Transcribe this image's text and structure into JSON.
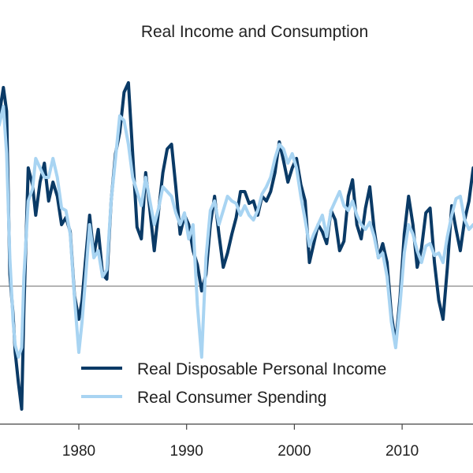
{
  "chart_data": {
    "type": "line",
    "title": "Real Income and Consumption",
    "xlabel": "",
    "ylabel": "",
    "x_ticks": [
      "1980",
      "1990",
      "2000",
      "2010"
    ],
    "x_range": [
      1972.6,
      2016.6
    ],
    "y_range": [
      -6.5,
      9.5
    ],
    "zero_line": 0,
    "legend_position": "lower-center",
    "colors": {
      "income": "#0a3a66",
      "spending": "#a8d4f2",
      "zero_line": "#888888"
    },
    "series": [
      {
        "name": "Real Disposable Personal Income",
        "x": [
          1972.6,
          1973.0,
          1973.3,
          1973.6,
          1973.9,
          1974.1,
          1974.4,
          1974.7,
          1974.9,
          1975.3,
          1975.7,
          1976.0,
          1976.4,
          1976.8,
          1977.2,
          1977.6,
          1978.0,
          1978.4,
          1978.8,
          1979.2,
          1979.6,
          1980.0,
          1980.3,
          1980.6,
          1981.0,
          1981.4,
          1981.8,
          1982.2,
          1982.6,
          1983.0,
          1983.4,
          1983.8,
          1984.2,
          1984.6,
          1985.0,
          1985.4,
          1985.8,
          1986.2,
          1986.6,
          1987.0,
          1987.4,
          1987.8,
          1988.2,
          1988.6,
          1989.0,
          1989.4,
          1989.8,
          1990.2,
          1990.6,
          1991.0,
          1991.4,
          1991.8,
          1992.2,
          1992.6,
          1993.0,
          1993.4,
          1993.8,
          1994.2,
          1994.6,
          1995.0,
          1995.4,
          1995.8,
          1996.2,
          1996.6,
          1997.0,
          1997.4,
          1997.8,
          1998.2,
          1998.6,
          1999.0,
          1999.4,
          1999.8,
          2000.2,
          2000.6,
          2001.0,
          2001.4,
          2001.8,
          2002.2,
          2002.6,
          2003.0,
          2003.4,
          2003.8,
          2004.2,
          2004.6,
          2005.0,
          2005.4,
          2005.8,
          2006.2,
          2006.6,
          2007.0,
          2007.4,
          2007.8,
          2008.2,
          2008.6,
          2009.0,
          2009.4,
          2009.8,
          2010.2,
          2010.6,
          2011.0,
          2011.4,
          2011.8,
          2012.2,
          2012.6,
          2013.0,
          2013.4,
          2013.8,
          2014.2,
          2014.6,
          2015.0,
          2015.4,
          2015.8,
          2016.2,
          2016.6
        ],
        "values": [
          7.2,
          8.4,
          7.4,
          0.5,
          -1.2,
          -2.8,
          -4.1,
          -5.2,
          -1.0,
          5.0,
          4.3,
          3.0,
          4.4,
          5.2,
          3.6,
          4.4,
          3.8,
          2.6,
          2.9,
          2.3,
          -0.4,
          -1.4,
          -0.6,
          1.0,
          3.0,
          1.3,
          2.4,
          0.5,
          0.3,
          3.6,
          5.6,
          6.5,
          8.2,
          8.6,
          5.6,
          2.5,
          2.0,
          4.8,
          3.2,
          1.5,
          3.2,
          4.8,
          5.8,
          6.0,
          4.2,
          2.2,
          3.0,
          2.6,
          1.5,
          0.9,
          -0.2,
          0.5,
          2.6,
          3.8,
          2.2,
          0.8,
          1.4,
          2.2,
          2.9,
          4.0,
          4.0,
          3.5,
          3.6,
          3.0,
          3.8,
          3.6,
          4.0,
          4.8,
          6.1,
          5.3,
          4.4,
          5.0,
          5.4,
          4.3,
          3.6,
          1.0,
          1.8,
          2.6,
          2.3,
          1.8,
          3.2,
          2.8,
          1.5,
          1.9,
          3.8,
          4.5,
          2.6,
          2.0,
          3.3,
          4.2,
          2.4,
          1.2,
          1.8,
          1.0,
          -1.2,
          -2.4,
          -0.5,
          2.2,
          3.8,
          2.6,
          0.8,
          1.6,
          3.1,
          3.3,
          1.0,
          -0.6,
          -1.4,
          0.8,
          3.4,
          2.4,
          1.5,
          2.8,
          3.6,
          5.0
        ]
      },
      {
        "name": "Real Consumer Spending",
        "x": [
          1972.6,
          1973.0,
          1973.3,
          1973.6,
          1973.9,
          1974.1,
          1974.4,
          1974.7,
          1974.9,
          1975.3,
          1975.7,
          1976.0,
          1976.4,
          1976.8,
          1977.2,
          1977.6,
          1978.0,
          1978.4,
          1978.8,
          1979.2,
          1979.6,
          1980.0,
          1980.3,
          1980.6,
          1981.0,
          1981.4,
          1981.8,
          1982.2,
          1982.6,
          1983.0,
          1983.4,
          1983.8,
          1984.2,
          1984.6,
          1985.0,
          1985.4,
          1985.8,
          1986.2,
          1986.6,
          1987.0,
          1987.4,
          1987.8,
          1988.2,
          1988.6,
          1989.0,
          1989.4,
          1989.8,
          1990.2,
          1990.6,
          1991.0,
          1991.4,
          1991.8,
          1992.2,
          1992.6,
          1993.0,
          1993.4,
          1993.8,
          1994.2,
          1994.6,
          1995.0,
          1995.4,
          1995.8,
          1996.2,
          1996.6,
          1997.0,
          1997.4,
          1997.8,
          1998.2,
          1998.6,
          1999.0,
          1999.4,
          1999.8,
          2000.2,
          2000.6,
          2001.0,
          2001.4,
          2001.8,
          2002.2,
          2002.6,
          2003.0,
          2003.4,
          2003.8,
          2004.2,
          2004.6,
          2005.0,
          2005.4,
          2005.8,
          2006.2,
          2006.6,
          2007.0,
          2007.4,
          2007.8,
          2008.2,
          2008.6,
          2009.0,
          2009.4,
          2009.8,
          2010.2,
          2010.6,
          2011.0,
          2011.4,
          2011.8,
          2012.2,
          2012.6,
          2013.0,
          2013.4,
          2013.8,
          2014.2,
          2014.6,
          2015.0,
          2015.4,
          2015.8,
          2016.2,
          2016.6
        ],
        "values": [
          6.8,
          7.6,
          5.6,
          1.2,
          -1.5,
          -2.5,
          -3.0,
          -2.6,
          0.4,
          3.6,
          4.1,
          5.4,
          5.0,
          4.6,
          4.6,
          5.4,
          4.6,
          3.3,
          3.2,
          2.2,
          -0.5,
          -2.8,
          -1.5,
          0.2,
          2.6,
          1.2,
          1.5,
          0.4,
          0.7,
          3.6,
          5.4,
          7.2,
          7.0,
          6.0,
          4.6,
          4.0,
          3.4,
          4.6,
          3.6,
          2.6,
          3.3,
          4.2,
          4.0,
          3.8,
          3.1,
          2.6,
          3.1,
          2.0,
          2.6,
          -0.8,
          -3.0,
          1.2,
          3.2,
          3.6,
          2.6,
          3.2,
          3.8,
          3.6,
          3.5,
          3.0,
          3.4,
          3.0,
          2.8,
          3.2,
          3.9,
          4.2,
          4.6,
          5.4,
          6.0,
          5.8,
          5.2,
          5.6,
          5.0,
          3.8,
          2.8,
          1.7,
          2.2,
          2.6,
          3.0,
          2.1,
          3.2,
          3.6,
          4.0,
          3.4,
          3.2,
          3.6,
          3.0,
          2.6,
          2.4,
          2.7,
          2.1,
          1.2,
          1.4,
          0.4,
          -1.5,
          -2.6,
          -0.8,
          1.4,
          2.6,
          2.2,
          1.5,
          1.0,
          1.7,
          1.8,
          1.3,
          1.4,
          1.0,
          2.1,
          3.0,
          3.7,
          3.8,
          2.8,
          2.4,
          2.6
        ]
      }
    ]
  }
}
